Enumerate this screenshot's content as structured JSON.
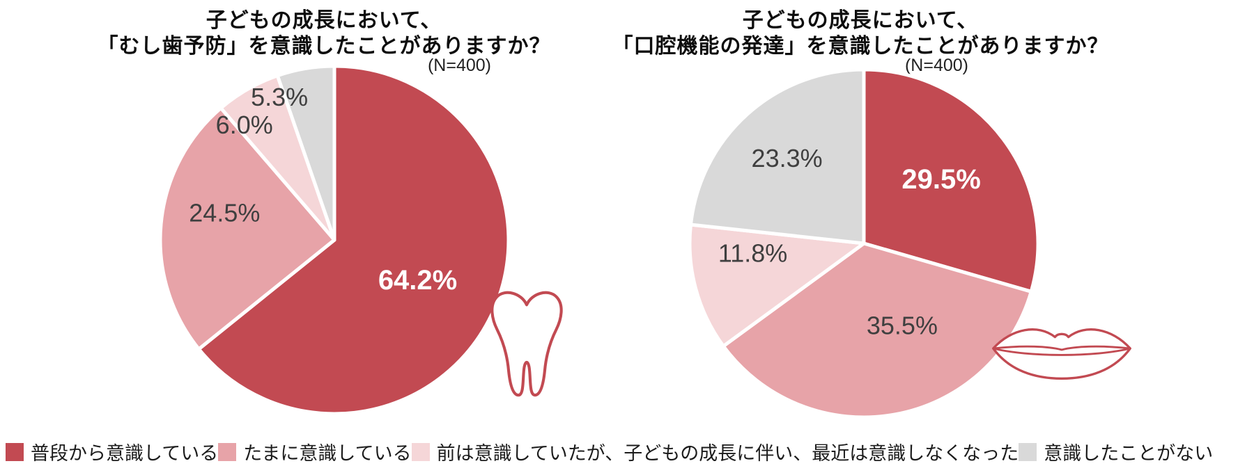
{
  "colors": {
    "always": "#c24a52",
    "sometimes": "#e7a3a8",
    "used_to": "#f5d6d8",
    "never": "#d9d9d9",
    "label_dark": "#3f3f3f",
    "label_light": "#ffffff",
    "icon_stroke": "#c24a52",
    "separator": "#ffffff"
  },
  "chart_data": [
    {
      "type": "pie",
      "title_lines": [
        "子どもの成長において、",
        "「むし歯予防」を意識したことがありますか？"
      ],
      "sample_label": "(N=400)",
      "n": 400,
      "unit": "%",
      "start_angle_deg": 0,
      "direction": "clockwise",
      "legend_position": "bottom",
      "icon": "tooth-icon",
      "slices": [
        {
          "label": "普段から意識している",
          "value": 64.2,
          "display": "64.2%",
          "color": "#c24a52",
          "text_color": "#ffffff",
          "bold": true,
          "label_r": 0.53
        },
        {
          "label": "たまに意識している",
          "value": 24.5,
          "display": "24.5%",
          "color": "#e7a3a8",
          "text_color": "#3f3f3f",
          "bold": false,
          "label_r": 0.65,
          "label_angle": 284
        },
        {
          "label": "前は意識していたが、子どもの成長に伴い、最近は意識しなくなった",
          "value": 6.0,
          "display": "6.0%",
          "color": "#f5d6d8",
          "text_color": "#3f3f3f",
          "bold": false,
          "label_r": 0.84,
          "label_angle": 322
        },
        {
          "label": "意識したことがない",
          "value": 5.3,
          "display": "5.3%",
          "color": "#d9d9d9",
          "text_color": "#3f3f3f",
          "bold": false,
          "label_r": 0.88,
          "label_angle": 339
        }
      ]
    },
    {
      "type": "pie",
      "title_lines": [
        "子どもの成長において、",
        "「口腔機能の発達」を意識したことがありますか？"
      ],
      "sample_label": "(N=400)",
      "n": 400,
      "unit": "%",
      "start_angle_deg": 0,
      "direction": "clockwise",
      "legend_position": "bottom",
      "icon": "lips-icon",
      "slices": [
        {
          "label": "普段から意識している",
          "value": 29.5,
          "display": "29.5%",
          "color": "#c24a52",
          "text_color": "#ffffff",
          "bold": true,
          "label_r": 0.58,
          "label_angle": 50
        },
        {
          "label": "たまに意識している",
          "value": 35.5,
          "display": "35.5%",
          "color": "#e7a3a8",
          "text_color": "#3f3f3f",
          "bold": false,
          "label_r": 0.52,
          "label_angle": 155
        },
        {
          "label": "前は意識していたが、子どもの成長に伴い、最近は意識しなくなった",
          "value": 11.8,
          "display": "11.8%",
          "color": "#f5d6d8",
          "text_color": "#3f3f3f",
          "bold": false,
          "label_r": 0.64,
          "label_angle": 265
        },
        {
          "label": "意識したことがない",
          "value": 23.3,
          "display": "23.3%",
          "color": "#d9d9d9",
          "text_color": "#3f3f3f",
          "bold": false,
          "label_r": 0.66,
          "label_angle": 318
        }
      ]
    }
  ],
  "legend": {
    "items": [
      {
        "label": "普段から意識している",
        "color": "#c24a52"
      },
      {
        "label": "たまに意識している",
        "color": "#e7a3a8"
      },
      {
        "label": "前は意識していたが、子どもの成長に伴い、最近は意識しなくなった",
        "color": "#f5d6d8"
      },
      {
        "label": "意識したことがない",
        "color": "#d9d9d9"
      }
    ]
  }
}
